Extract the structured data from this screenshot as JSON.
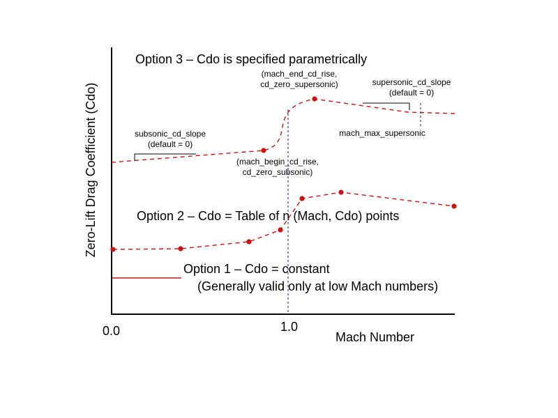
{
  "axes": {
    "ylabel": "Zero-Lift Drag Coefficient (Cdo)",
    "xlabel": "Mach Number",
    "x_ticks": [
      "0.0",
      "1.0"
    ]
  },
  "option3": {
    "title": "Option 3 – Cdo is specified parametrically",
    "label_end_rise": [
      "(mach_end_cd_rise,",
      "cd_zero_supersonic)"
    ],
    "label_supersonic_slope": [
      "supersonic_cd_slope",
      "(default = 0)"
    ],
    "label_subsonic_slope": [
      "subsonic_cd_slope",
      "(default = 0)"
    ],
    "label_begin_rise": [
      "(mach_begin_cd_rise,",
      "cd_zero_subsonic)"
    ],
    "label_max_supersonic": "mach_max_supersonic"
  },
  "option2": {
    "title": "Option 2 – Cdo = Table of n (Mach, Cdo) points"
  },
  "option1": {
    "title": "Option 1 – Cdo = constant",
    "note": "(Generally valid only at low Mach numbers)"
  },
  "colors": {
    "curve": "#d01010",
    "mach_one_line": "#1a1a6e",
    "axis": "#000000"
  }
}
